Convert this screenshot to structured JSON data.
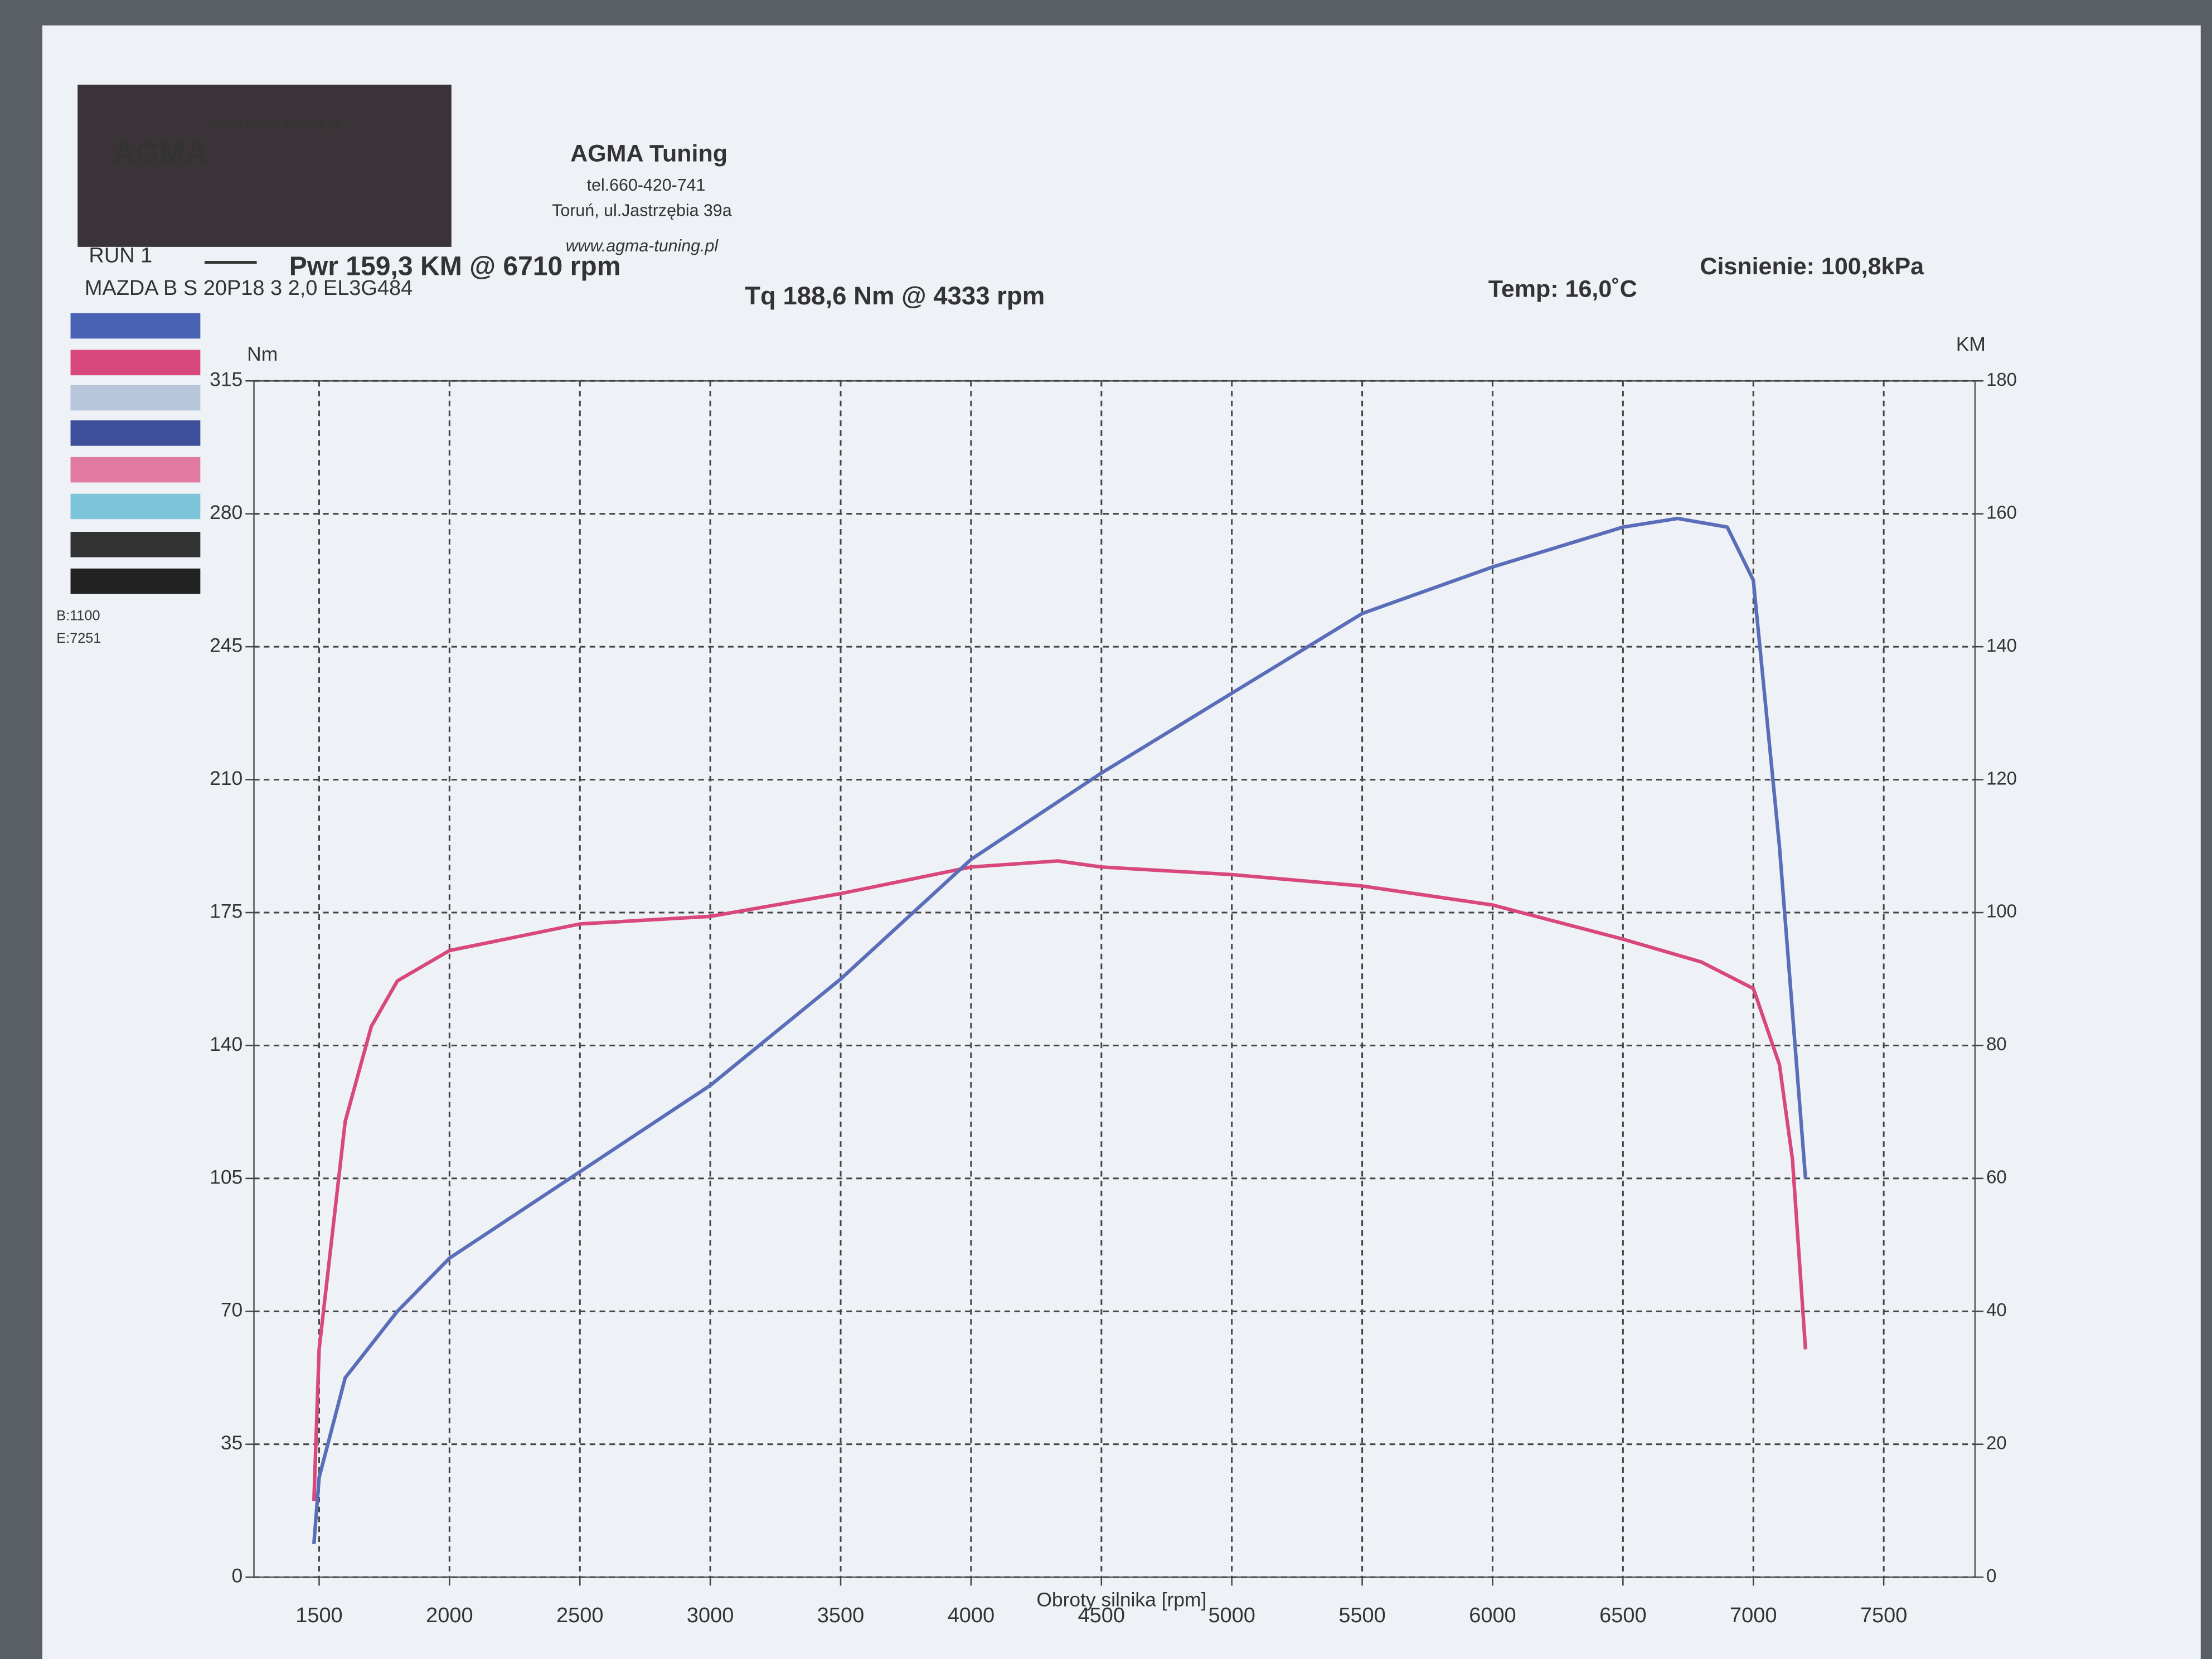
{
  "chart_data": {
    "type": "line",
    "title": "AGMA Tuning",
    "header_lines": [
      "tel.660-420-741",
      "Toruń, ul.Jastrzębia 39a",
      "www.agma-tuning.pl"
    ],
    "logo": {
      "site": "www.agma-tuning.pl",
      "name": "AGMA"
    },
    "run": "RUN 1",
    "vehicle": "MAZDA B S  20P18 3 2,0 EL3G484",
    "power_peak": "Pwr  159,3 KM @ 6710 rpm",
    "torque_peak": "Tq 188,6 Nm @ 4333 rpm",
    "temperature": "Temp: 16,0˚C",
    "pressure": "Cisnienie: 100,8kPa",
    "panel_labels": [
      "B:1100",
      "E:7251"
    ],
    "xlabel": "Obroty silnika [rpm]",
    "ylabel": "Nm",
    "y2label": "KM",
    "xlim": [
      1250,
      7850
    ],
    "xticks": [
      1500,
      2000,
      2500,
      3000,
      3500,
      4000,
      4500,
      5000,
      5500,
      6000,
      6500,
      7000,
      7500
    ],
    "ylim": [
      0,
      315
    ],
    "yticks": [
      0,
      35,
      70,
      105,
      140,
      175,
      210,
      245,
      280,
      315
    ],
    "y2lim": [
      0,
      180
    ],
    "y2ticks": [
      0,
      20,
      40,
      60,
      80,
      100,
      120,
      140,
      160,
      180
    ],
    "grid": true,
    "series": [
      {
        "color": "#d9487a",
        "x": [
          1480,
          1500,
          1600,
          1700,
          1800,
          2000,
          2500,
          3000,
          3500,
          4000,
          4333,
          4500,
          5000,
          5500,
          6000,
          6500,
          6800,
          7000,
          7100,
          7150,
          7200
        ],
        "values": [
          20,
          60,
          120,
          145,
          157,
          165,
          172,
          174,
          180,
          187,
          188.6,
          187,
          185,
          182,
          177,
          168,
          162,
          155,
          135,
          110,
          60
        ]
      },
      {
        "color": "#5a6db8",
        "axis": "y2",
        "x": [
          1480,
          1500,
          1600,
          1800,
          2000,
          2500,
          3000,
          3500,
          4000,
          4500,
          5000,
          5500,
          6000,
          6500,
          6710,
          6900,
          7000,
          7100,
          7200
        ],
        "values": [
          5,
          15,
          30,
          40,
          48,
          61,
          74,
          90,
          108,
          121,
          133,
          145,
          152,
          158,
          159.3,
          158,
          150,
          110,
          60
        ]
      }
    ]
  }
}
